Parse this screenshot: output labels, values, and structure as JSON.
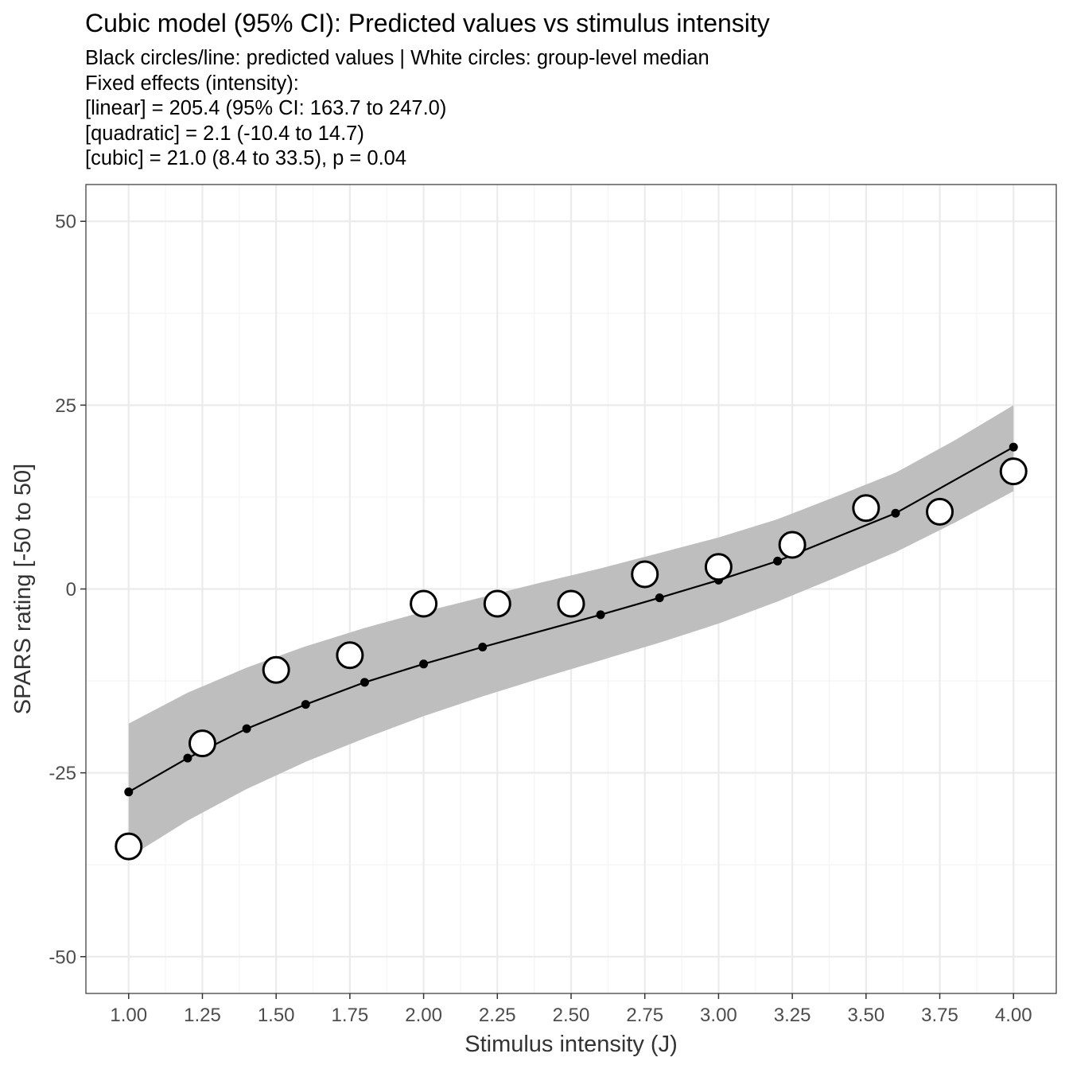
{
  "chart_data": {
    "type": "line",
    "title": "Cubic model (95% CI): Predicted values vs stimulus intensity",
    "subtitle": [
      "Black circles/line: predicted values | White circles: group-level median",
      "Fixed effects (intensity):",
      "[linear] = 205.4 (95% CI: 163.7 to 247.0)",
      "[quadratic] = 2.1 (-10.4 to 14.7)",
      "[cubic] = 21.0 (8.4 to 33.5), p = 0.04"
    ],
    "xlabel": "Stimulus intensity (J)",
    "ylabel": "SPARS rating [-50 to 50]",
    "xlim": [
      0.855,
      4.145
    ],
    "ylim": [
      -55,
      55
    ],
    "x_ticks": [
      "1.00",
      "1.25",
      "1.50",
      "1.75",
      "2.00",
      "2.25",
      "2.50",
      "2.75",
      "3.00",
      "3.25",
      "3.50",
      "3.75",
      "4.00"
    ],
    "y_ticks": [
      "-50",
      "-25",
      "0",
      "25",
      "50"
    ],
    "grid": true,
    "series": [
      {
        "kind": "ci-ribbon",
        "x": [
          1.0,
          1.2,
          1.4,
          1.6,
          1.8,
          2.0,
          2.2,
          2.4,
          2.6,
          2.8,
          3.0,
          3.2,
          3.4,
          3.6,
          3.8,
          4.0
        ],
        "lower": [
          -36.5,
          -31.5,
          -27.2,
          -23.5,
          -20.3,
          -17.3,
          -14.6,
          -12.1,
          -9.7,
          -7.3,
          -4.7,
          -1.7,
          1.6,
          5.0,
          9.0,
          13.3
        ],
        "upper": [
          -18.3,
          -14.1,
          -10.7,
          -7.8,
          -5.3,
          -3.1,
          -1.1,
          0.9,
          2.8,
          4.9,
          7.0,
          9.5,
          12.6,
          15.8,
          20.2,
          25.0
        ]
      },
      {
        "kind": "predicted",
        "x": [
          1.0,
          1.2,
          1.4,
          1.6,
          1.8,
          2.0,
          2.2,
          2.6,
          2.8,
          3.0,
          3.2,
          3.6,
          4.0
        ],
        "values": [
          -27.6,
          -23.0,
          -19.0,
          -15.7,
          -12.7,
          -10.2,
          -7.9,
          -3.5,
          -1.2,
          1.2,
          3.8,
          10.3,
          19.3
        ]
      },
      {
        "kind": "group-median",
        "x": [
          1.0,
          1.25,
          1.5,
          1.75,
          2.0,
          2.25,
          2.5,
          2.75,
          3.0,
          3.25,
          3.5,
          3.75,
          4.0
        ],
        "values": [
          -35,
          -21,
          -11,
          -9,
          -2,
          -2,
          -2,
          2,
          3,
          6,
          11,
          10.5,
          16
        ]
      }
    ],
    "colors": {
      "ribbon": "#bebebe",
      "line": "#000000",
      "median_fill": "#ffffff",
      "median_stroke": "#000000",
      "grid_major": "#ebebeb",
      "grid_minor": "#f5f5f5",
      "panel_border": "#333333"
    }
  }
}
